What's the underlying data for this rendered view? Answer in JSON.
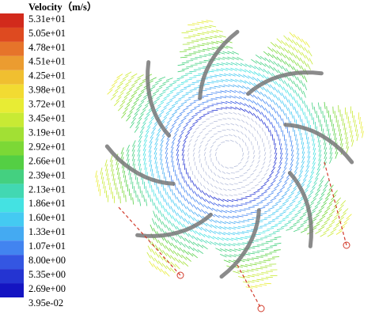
{
  "chart_data": {
    "type": "vector-field",
    "title": "Velocity（m/s）",
    "colorbar": {
      "ticks": [
        {
          "value": 53.1,
          "label": "5.31e+01"
        },
        {
          "value": 50.5,
          "label": "5.05e+01"
        },
        {
          "value": 47.8,
          "label": "4.78e+01"
        },
        {
          "value": 45.1,
          "label": "4.51e+01"
        },
        {
          "value": 42.5,
          "label": "4.25e+01"
        },
        {
          "value": 39.8,
          "label": "3.98e+01"
        },
        {
          "value": 37.2,
          "label": "3.72e+01"
        },
        {
          "value": 34.5,
          "label": "3.45e+01"
        },
        {
          "value": 31.9,
          "label": "3.19e+01"
        },
        {
          "value": 29.2,
          "label": "2.92e+01"
        },
        {
          "value": 26.6,
          "label": "2.66e+01"
        },
        {
          "value": 23.9,
          "label": "2.39e+01"
        },
        {
          "value": 21.3,
          "label": "2.13e+01"
        },
        {
          "value": 18.6,
          "label": "1.86e+01"
        },
        {
          "value": 16.0,
          "label": "1.60e+01"
        },
        {
          "value": 13.3,
          "label": "1.33e+01"
        },
        {
          "value": 10.7,
          "label": "1.07e+01"
        },
        {
          "value": 8.0,
          "label": "8.00e+00"
        },
        {
          "value": 5.35,
          "label": "5.35e+00"
        },
        {
          "value": 2.69,
          "label": "2.69e+00"
        },
        {
          "value": 0.0395,
          "label": "3.95e-02"
        }
      ],
      "colors": [
        "#d22a1c",
        "#de4a20",
        "#e6742a",
        "#eb9c30",
        "#f0bf30",
        "#f2db32",
        "#e8ec34",
        "#c8ea34",
        "#a2e034",
        "#7cd836",
        "#54cf44",
        "#44d080",
        "#42d8b2",
        "#44e2e2",
        "#44caf2",
        "#44aaf2",
        "#4284f0",
        "#3456e2",
        "#2434d2",
        "#1414c2"
      ]
    }
  }
}
